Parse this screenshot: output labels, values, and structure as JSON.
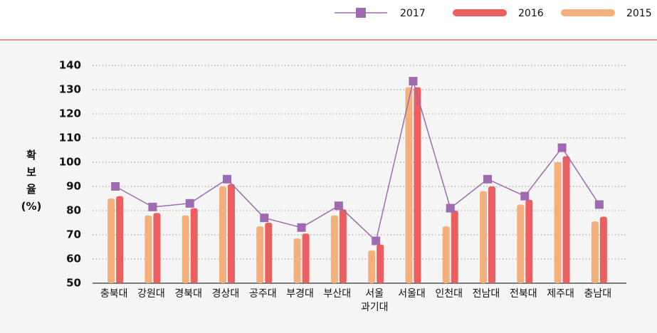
{
  "chart_data": {
    "type": "bar_line",
    "y_label": "확보율 (%)",
    "categories": [
      "충북대",
      "강원대",
      "경북대",
      "경상대",
      "공주대",
      "부경대",
      "부산대",
      "서울 과기대",
      "서울대",
      "인천대",
      "전남대",
      "전북대",
      "제주대",
      "충남대"
    ],
    "series": [
      {
        "name": "2017",
        "type": "line",
        "color": "#9e6bb0",
        "values": [
          90,
          81.5,
          83,
          93,
          77,
          73,
          82,
          67.5,
          133.5,
          81,
          93,
          86,
          106,
          82.5
        ]
      },
      {
        "name": "2016",
        "type": "bar",
        "color": "#ea5f5f",
        "values": [
          86,
          79,
          81,
          91,
          75,
          70.5,
          80.5,
          66,
          131,
          80,
          90,
          84.5,
          102.5,
          77.5
        ]
      },
      {
        "name": "2015",
        "type": "bar",
        "color": "#f4b07c",
        "values": [
          85,
          78,
          78,
          90,
          73.5,
          68.5,
          78,
          63.5,
          131,
          73.5,
          88,
          82.5,
          100,
          75.5
        ]
      }
    ],
    "ylim": [
      50,
      140
    ],
    "yticks": [
      50,
      60,
      70,
      80,
      90,
      100,
      110,
      120,
      130,
      140
    ],
    "grid": true,
    "legend": "top-right"
  }
}
